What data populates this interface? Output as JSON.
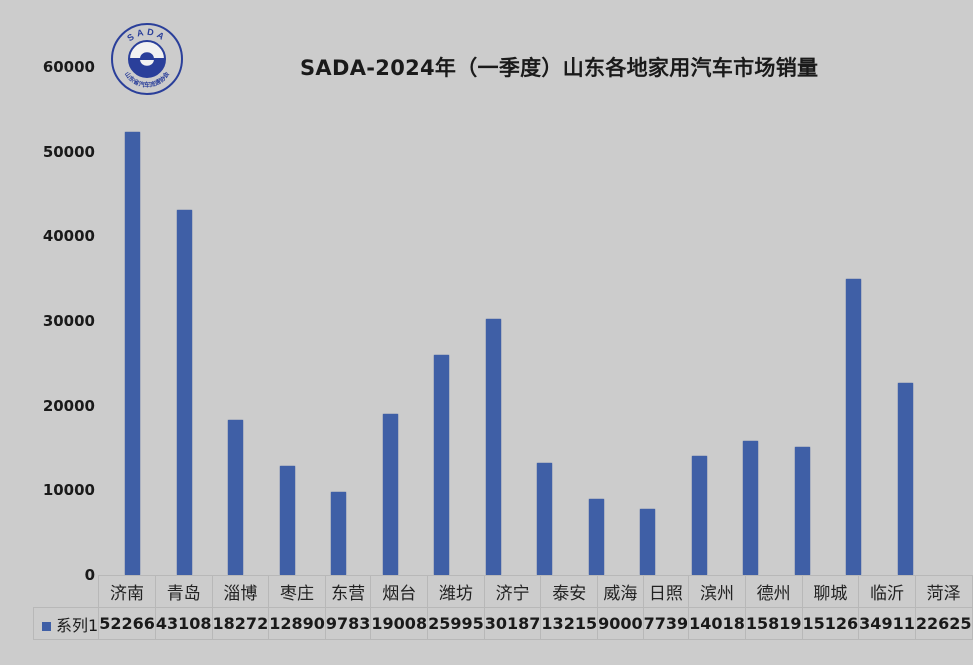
{
  "chart_data": {
    "type": "bar",
    "title": "SADA-2024年（一季度）山东各地家用汽车市场销量",
    "xlabel": "",
    "ylabel": "",
    "ylim": [
      0,
      60000
    ],
    "yticks": [
      "60000",
      "50000",
      "40000",
      "30000",
      "20000",
      "10000",
      "0"
    ],
    "grid": false,
    "legend_position": "data-table",
    "categories": [
      "济南",
      "青岛",
      "淄博",
      "枣庄",
      "东营",
      "烟台",
      "潍坊",
      "济宁",
      "泰安",
      "威海",
      "日照",
      "滨州",
      "德州",
      "聊城",
      "临沂",
      "菏泽"
    ],
    "series": [
      {
        "name": "系列1",
        "color": "#3f5fa6",
        "values": [
          52266,
          43108,
          18272,
          12890,
          9783,
          19008,
          25995,
          30187,
          13215,
          9000,
          7739,
          14018,
          15819,
          15126,
          34911,
          22625
        ]
      }
    ]
  },
  "logo": {
    "text_top": "SADA",
    "text_bottom": "山东省汽车流通协会"
  },
  "colors": {
    "background": "#cccccc",
    "bar": "#3f5fa6",
    "logo": "#2a3f9a"
  }
}
